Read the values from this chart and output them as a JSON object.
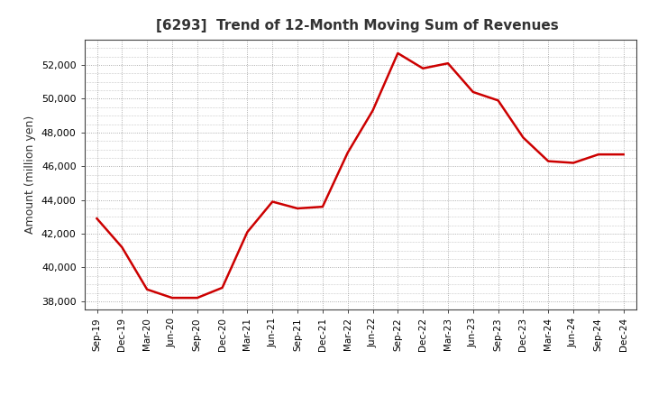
{
  "title": "[6293]  Trend of 12-Month Moving Sum of Revenues",
  "ylabel": "Amount (million yen)",
  "line_color": "#cc0000",
  "line_width": 1.8,
  "background_color": "#ffffff",
  "plot_bg_color": "#ffffff",
  "grid_color": "#999999",
  "title_color": "#333333",
  "ylim": [
    37500,
    53500
  ],
  "yticks": [
    38000,
    40000,
    42000,
    44000,
    46000,
    48000,
    50000,
    52000
  ],
  "x_labels": [
    "Sep-19",
    "Dec-19",
    "Mar-20",
    "Jun-20",
    "Sep-20",
    "Dec-20",
    "Mar-21",
    "Jun-21",
    "Sep-21",
    "Dec-21",
    "Mar-22",
    "Jun-22",
    "Sep-22",
    "Dec-22",
    "Mar-23",
    "Jun-23",
    "Sep-23",
    "Dec-23",
    "Mar-24",
    "Jun-24",
    "Sep-24",
    "Dec-24"
  ],
  "values": [
    42900,
    41200,
    38700,
    38200,
    38200,
    38800,
    42100,
    43900,
    43500,
    43600,
    46800,
    49300,
    52700,
    51800,
    52100,
    50400,
    49900,
    47700,
    46300,
    46200,
    46700,
    46700
  ]
}
